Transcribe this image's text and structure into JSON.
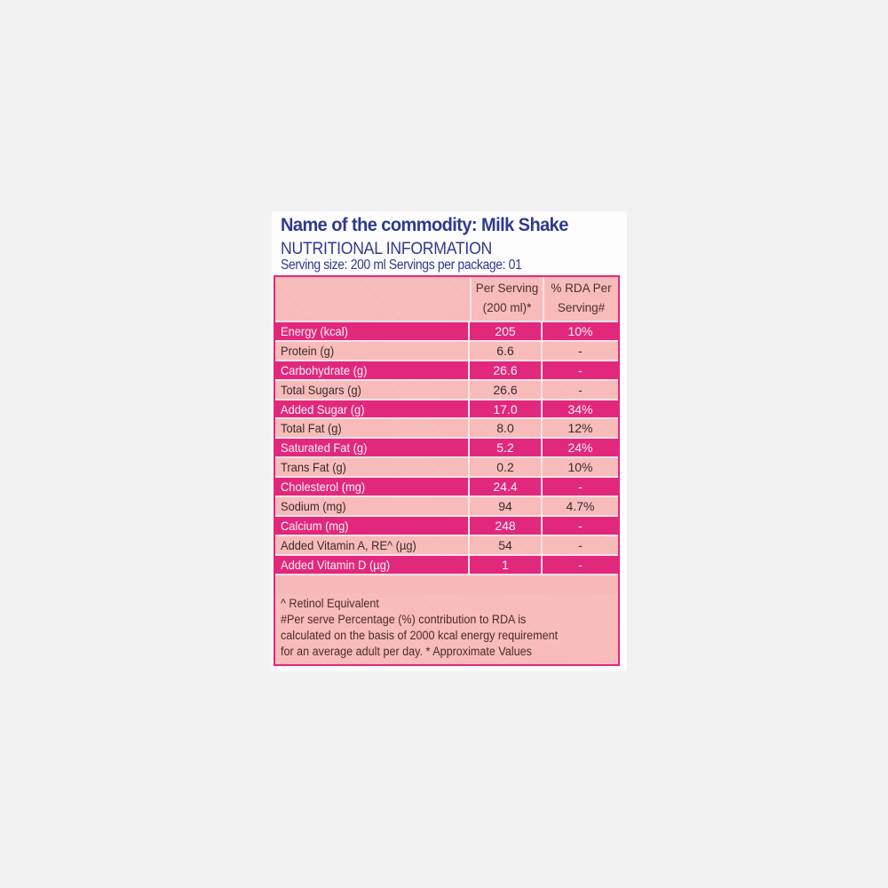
{
  "header": {
    "title": "Name of the commodity: Milk Shake",
    "subtitle": "NUTRITIONAL INFORMATION",
    "serving": "Serving size: 200 ml  Servings per package: 01"
  },
  "table": {
    "columns": {
      "per_serving_line1": "Per Serving",
      "per_serving_line2": "(200 ml)*",
      "rda_line1": "% RDA Per",
      "rda_line2": "Serving#"
    },
    "rows": [
      {
        "nutrient": "Energy (kcal)",
        "per_serving": "205",
        "rda": "10%"
      },
      {
        "nutrient": "Protein (g)",
        "per_serving": "6.6",
        "rda": "-"
      },
      {
        "nutrient": "Carbohydrate (g)",
        "per_serving": "26.6",
        "rda": "-"
      },
      {
        "nutrient": "Total Sugars (g)",
        "per_serving": "26.6",
        "rda": "-"
      },
      {
        "nutrient": "Added Sugar (g)",
        "per_serving": "17.0",
        "rda": "34%"
      },
      {
        "nutrient": "Total Fat (g)",
        "per_serving": "8.0",
        "rda": "12%"
      },
      {
        "nutrient": "Saturated Fat (g)",
        "per_serving": "5.2",
        "rda": "24%"
      },
      {
        "nutrient": "Trans Fat (g)",
        "per_serving": "0.2",
        "rda": "10%"
      },
      {
        "nutrient": "Cholesterol (mg)",
        "per_serving": "24.4",
        "rda": "-"
      },
      {
        "nutrient": "Sodium (mg)",
        "per_serving": "94",
        "rda": "4.7%"
      },
      {
        "nutrient": "Calcium (mg)",
        "per_serving": "248",
        "rda": "-"
      },
      {
        "nutrient": "Added Vitamin A, RE^ (µg)",
        "per_serving": "54",
        "rda": "-"
      },
      {
        "nutrient": "Added Vitamin D (µg)",
        "per_serving": "1",
        "rda": "-"
      }
    ]
  },
  "notes": [
    "^ Retinol Equivalent",
    "#Per serve Percentage (%) contribution to RDA is",
    "calculated on the basis of 2000 kcal energy requirement",
    "for an average adult per day. * Approximate Values"
  ],
  "colors": {
    "title_blue": "#2e3a8c",
    "row_magenta": "#e2287d",
    "row_pink": "#f7b8b8",
    "background": "#f2f2f2"
  }
}
